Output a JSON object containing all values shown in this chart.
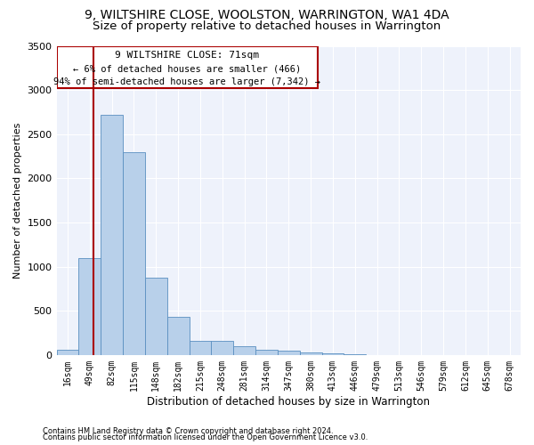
{
  "title": "9, WILTSHIRE CLOSE, WOOLSTON, WARRINGTON, WA1 4DA",
  "subtitle": "Size of property relative to detached houses in Warrington",
  "xlabel": "Distribution of detached houses by size in Warrington",
  "ylabel": "Number of detached properties",
  "categories": [
    "16sqm",
    "49sqm",
    "82sqm",
    "115sqm",
    "148sqm",
    "182sqm",
    "215sqm",
    "248sqm",
    "281sqm",
    "314sqm",
    "347sqm",
    "380sqm",
    "413sqm",
    "446sqm",
    "479sqm",
    "513sqm",
    "546sqm",
    "579sqm",
    "612sqm",
    "645sqm",
    "678sqm"
  ],
  "values": [
    60,
    1100,
    2720,
    2300,
    880,
    430,
    160,
    160,
    100,
    60,
    45,
    30,
    15,
    8,
    0,
    0,
    0,
    0,
    0,
    0,
    0
  ],
  "bar_color": "#b8d0ea",
  "bar_edge_color": "#5a8fc0",
  "background_color": "#eef2fb",
  "grid_color": "#ffffff",
  "property_label": "9 WILTSHIRE CLOSE: 71sqm",
  "annotation_line1": "← 6% of detached houses are smaller (466)",
  "annotation_line2": "94% of semi-detached houses are larger (7,342) →",
  "vline_x_index": 1.18,
  "ylim": [
    0,
    3500
  ],
  "yticks": [
    0,
    500,
    1000,
    1500,
    2000,
    2500,
    3000,
    3500
  ],
  "footnote1": "Contains HM Land Registry data © Crown copyright and database right 2024.",
  "footnote2": "Contains public sector information licensed under the Open Government Licence v3.0.",
  "box_color": "#aa0000",
  "title_fontsize": 10,
  "subtitle_fontsize": 9.5
}
